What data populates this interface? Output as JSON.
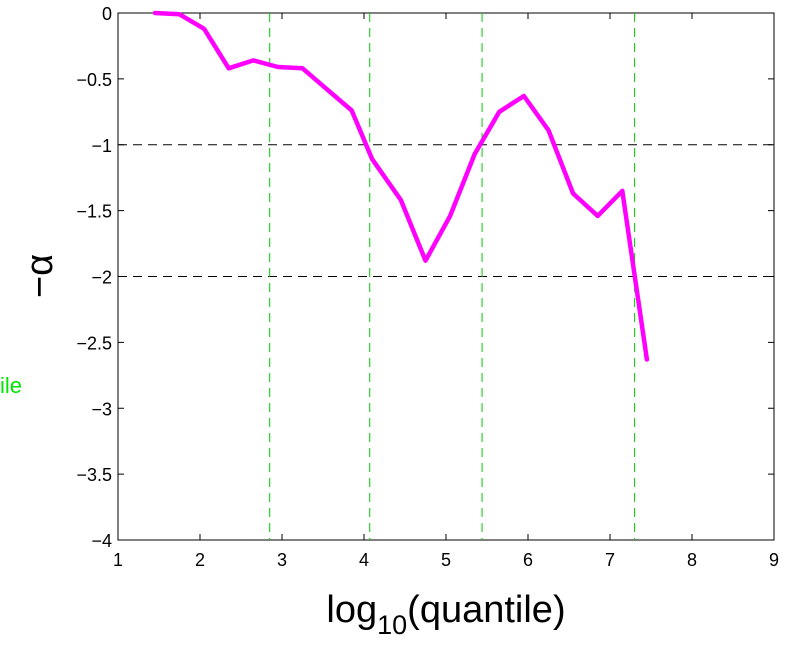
{
  "chart_data": {
    "type": "line",
    "title": "",
    "xlabel": {
      "base": "log",
      "subscript": "10",
      "rest": "(quantile)"
    },
    "ylabel": "−α",
    "side_label": "ile",
    "xlim": [
      1,
      9
    ],
    "ylim": [
      -4,
      0
    ],
    "x_ticks": [
      1,
      2,
      3,
      4,
      5,
      6,
      7,
      8,
      9
    ],
    "y_ticks": [
      0,
      -0.5,
      -1,
      -1.5,
      -2,
      -2.5,
      -3,
      -3.5,
      -4
    ],
    "x_tick_labels": [
      "1",
      "2",
      "3",
      "4",
      "5",
      "6",
      "7",
      "8",
      "9"
    ],
    "y_tick_labels": [
      "0",
      "−0.5",
      "−1",
      "−1.5",
      "−2",
      "−2.5",
      "−3",
      "−3.5",
      "−4"
    ],
    "grid": false,
    "reference_lines": {
      "horizontal": {
        "values": [
          -1,
          -2
        ],
        "color": "#000000",
        "style": "dashed"
      },
      "vertical": {
        "values": [
          2.85,
          4.07,
          5.44,
          7.3
        ],
        "color": "#00cc00",
        "style": "dashed"
      }
    },
    "series": [
      {
        "color": "#ff00ff",
        "x": [
          1.45,
          1.75,
          2.05,
          2.35,
          2.65,
          2.95,
          3.25,
          3.55,
          3.85,
          4.1,
          4.45,
          4.75,
          5.05,
          5.35,
          5.65,
          5.95,
          6.25,
          6.55,
          6.85,
          7.15,
          7.45
        ],
        "y": [
          0.0,
          -0.01,
          -0.12,
          -0.42,
          -0.36,
          -0.41,
          -0.42,
          -0.58,
          -0.74,
          -1.11,
          -1.42,
          -1.88,
          -1.54,
          -1.07,
          -0.75,
          -0.63,
          -0.89,
          -1.37,
          -1.54,
          -1.35,
          -2.63
        ]
      }
    ]
  }
}
